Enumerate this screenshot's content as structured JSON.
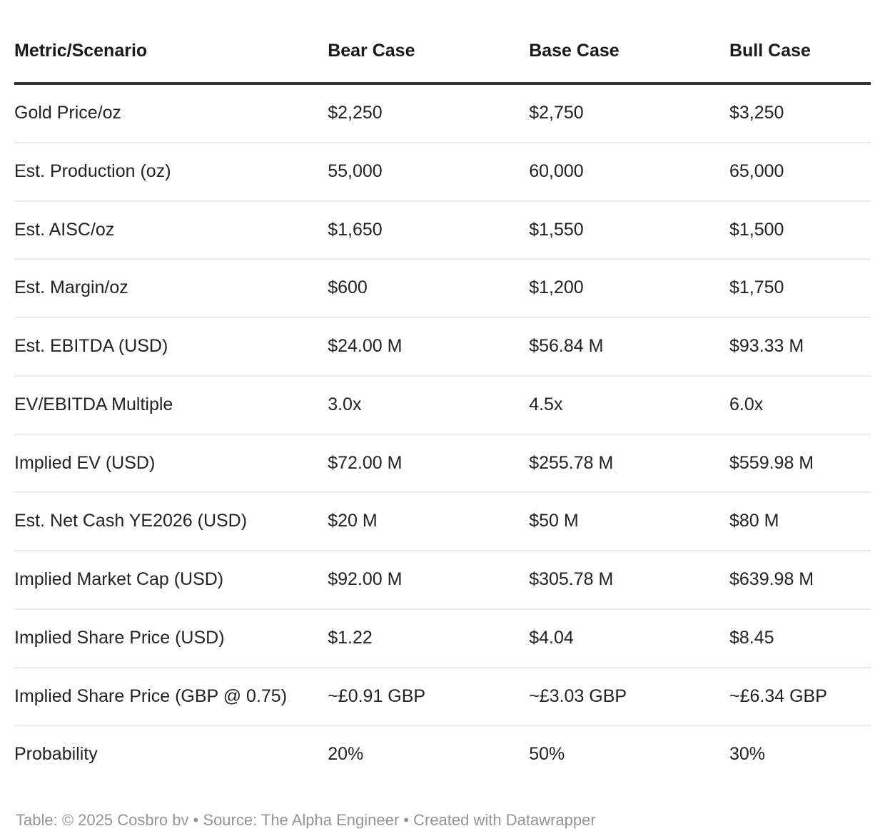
{
  "chart_data": {
    "type": "table",
    "title": "",
    "columns": [
      "Metric/Scenario",
      "Bear Case",
      "Base Case",
      "Bull Case"
    ],
    "rows": [
      {
        "metric": "Gold Price/oz",
        "bear": "$2,250",
        "base": "$2,750",
        "bull": "$3,250"
      },
      {
        "metric": "Est. Production (oz)",
        "bear": "55,000",
        "base": "60,000",
        "bull": "65,000"
      },
      {
        "metric": "Est. AISC/oz",
        "bear": "$1,650",
        "base": "$1,550",
        "bull": "$1,500"
      },
      {
        "metric": "Est. Margin/oz",
        "bear": "$600",
        "base": "$1,200",
        "bull": "$1,750"
      },
      {
        "metric": "Est. EBITDA (USD)",
        "bear": "$24.00 M",
        "base": "$56.84 M",
        "bull": "$93.33 M"
      },
      {
        "metric": "EV/EBITDA Multiple",
        "bear": "3.0x",
        "base": "4.5x",
        "bull": "6.0x"
      },
      {
        "metric": "Implied EV (USD)",
        "bear": "$72.00 M",
        "base": "$255.78 M",
        "bull": "$559.98 M"
      },
      {
        "metric": "Est. Net Cash YE2026 (USD)",
        "bear": "$20 M",
        "base": "$50 M",
        "bull": "$80 M"
      },
      {
        "metric": "Implied Market Cap (USD)",
        "bear": "$92.00 M",
        "base": "$305.78 M",
        "bull": "$639.98 M"
      },
      {
        "metric": "Implied Share Price (USD)",
        "bear": "$1.22",
        "base": "$4.04",
        "bull": "$8.45"
      },
      {
        "metric": "Implied Share Price (GBP @ 0.75)",
        "bear": "~£0.91 GBP",
        "base": "~£3.03 GBP",
        "bull": "~£6.34 GBP"
      },
      {
        "metric": "Probability",
        "bear": "20%",
        "base": "50%",
        "bull": "30%"
      }
    ]
  },
  "footer": {
    "text": "Table: © 2025 Cosbro bv  • Source: The Alpha Engineer • Created with Datawrapper"
  },
  "colors": {
    "header_text": "#1a1a1a",
    "body_text": "#222222",
    "header_rule": "#333333",
    "row_rule": "#e9e9e9",
    "footer_text": "#949494",
    "background": "#ffffff"
  }
}
